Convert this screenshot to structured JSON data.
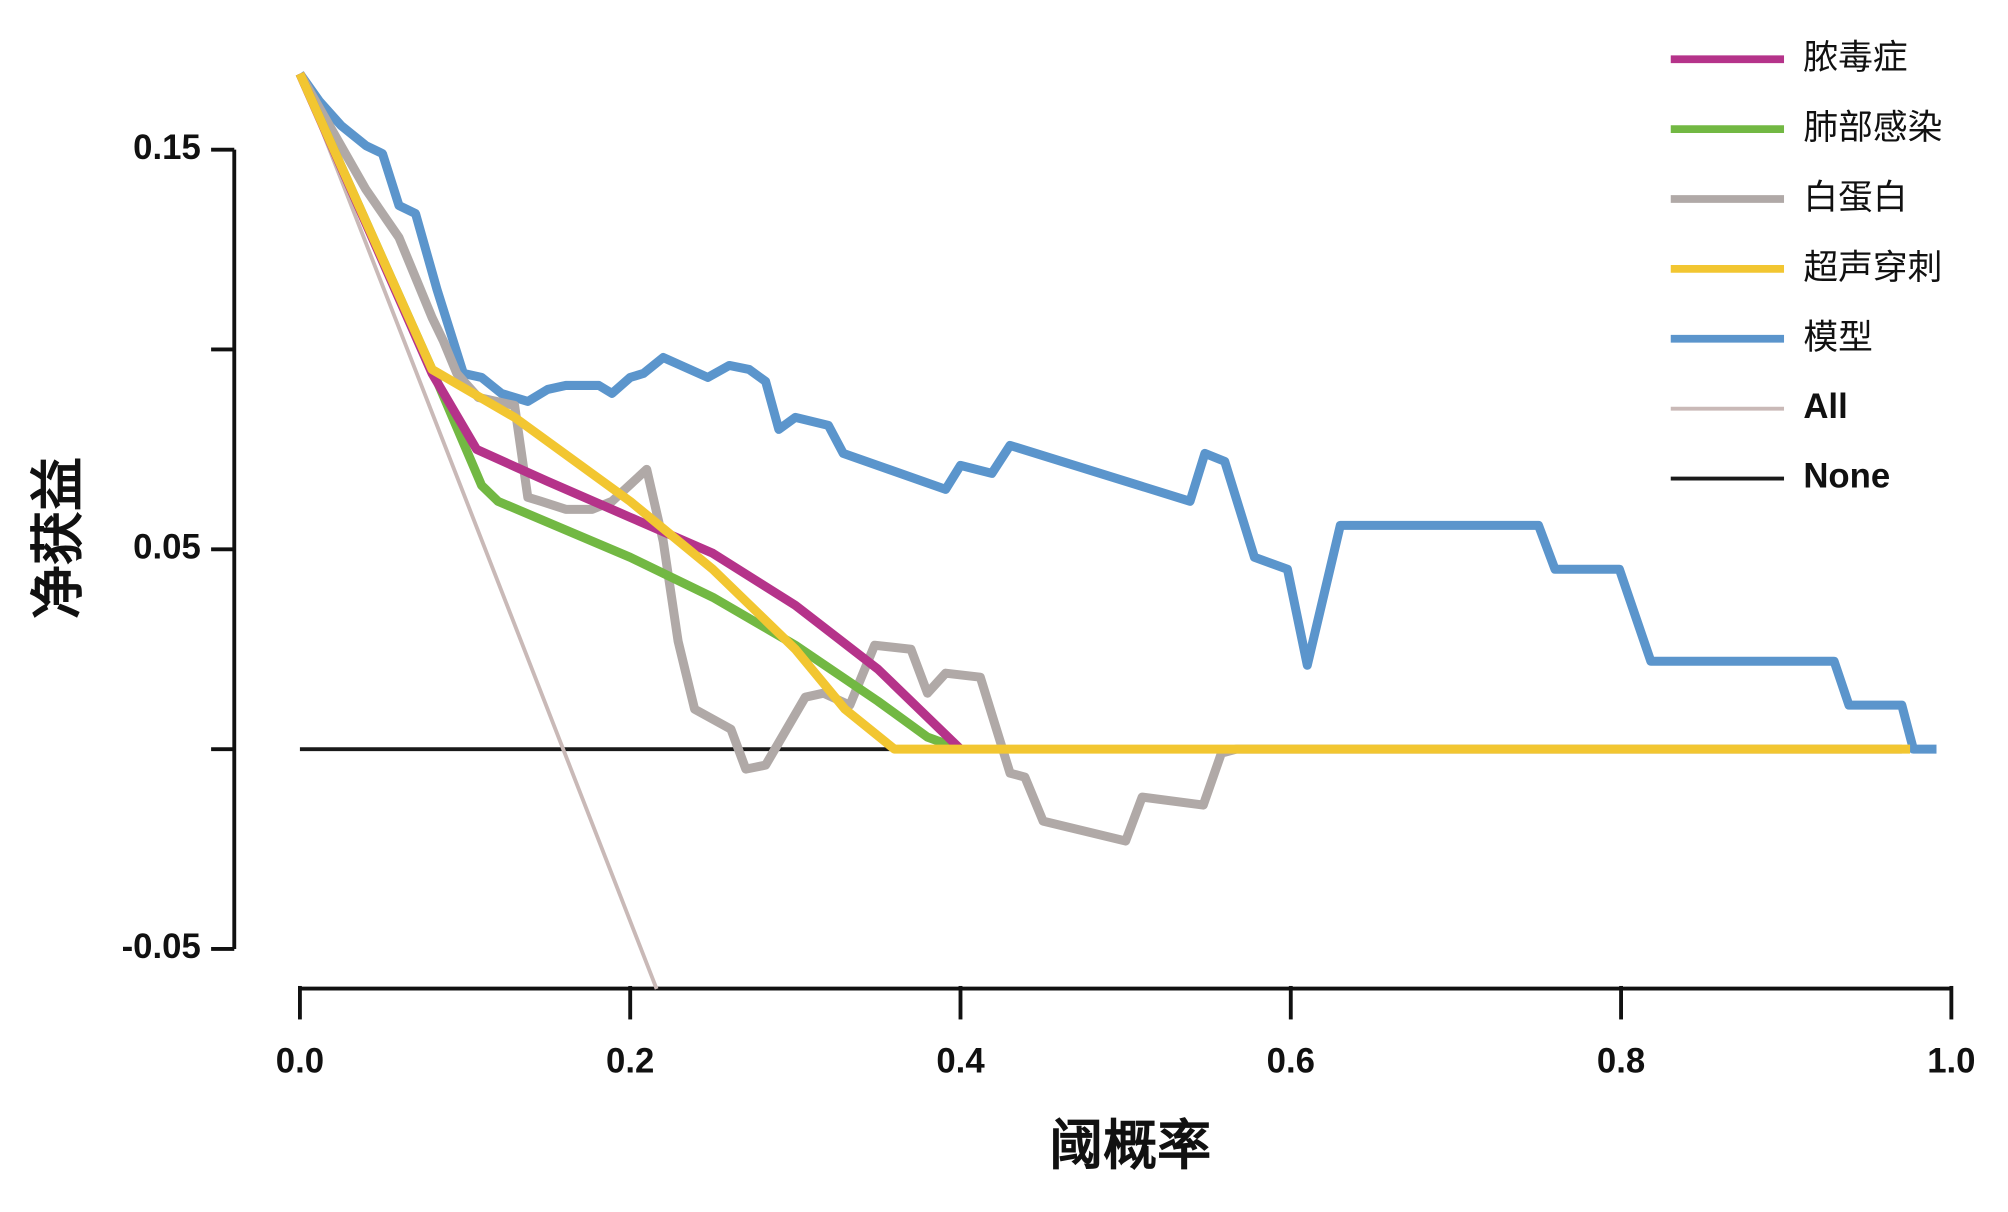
{
  "chart_data": {
    "type": "line",
    "xlabel": "阈概率",
    "ylabel": "净获益",
    "xlim": [
      0,
      1
    ],
    "ylim": [
      -0.06,
      0.17
    ],
    "xticks": [
      {
        "value": 0,
        "label": "0.0"
      },
      0.2,
      0.4,
      0.6,
      0.8,
      {
        "value": 1,
        "label": "1.0"
      }
    ],
    "yticks": [
      0.15,
      {
        "value": 0.1,
        "label": null
      },
      0.05,
      {
        "value": 0,
        "label": null
      },
      -0.05
    ],
    "legend": "top-right",
    "series": [
      {
        "name": "脓毒症",
        "color": "#b5338a",
        "x": [
          0,
          0.08,
          0.107,
          0.15,
          0.2,
          0.25,
          0.3,
          0.35,
          0.4
        ],
        "values": [
          0.169,
          0.094,
          0.075,
          0.067,
          0.058,
          0.049,
          0.036,
          0.02,
          0
        ]
      },
      {
        "name": "肺部感染",
        "color": "#72b843",
        "x": [
          0,
          0.08,
          0.11,
          0.12,
          0.2,
          0.25,
          0.3,
          0.35,
          0.38,
          0.4
        ],
        "values": [
          0.169,
          0.095,
          0.066,
          0.062,
          0.048,
          0.038,
          0.026,
          0.012,
          0.003,
          0
        ]
      },
      {
        "name": "白蛋白",
        "color": "#b0a9a7",
        "x": [
          0,
          0.04,
          0.06,
          0.07,
          0.08,
          0.087,
          0.095,
          0.108,
          0.13,
          0.138,
          0.146,
          0.161,
          0.177,
          0.189,
          0.21,
          0.22,
          0.229,
          0.239,
          0.261,
          0.27,
          0.282,
          0.306,
          0.317,
          0.333,
          0.348,
          0.37,
          0.38,
          0.391,
          0.412,
          0.43,
          0.439,
          0.45,
          0.5,
          0.51,
          0.547,
          0.558,
          0.567,
          0.97
        ],
        "values": [
          0.169,
          0.14,
          0.128,
          0.118,
          0.108,
          0.102,
          0.094,
          0.088,
          0.086,
          0.063,
          0.062,
          0.06,
          0.06,
          0.062,
          0.07,
          0.052,
          0.027,
          0.01,
          0.005,
          -0.005,
          -0.004,
          0.013,
          0.014,
          0.011,
          0.026,
          0.025,
          0.014,
          0.019,
          0.018,
          -0.006,
          -0.007,
          -0.018,
          -0.023,
          -0.012,
          -0.014,
          -0.001,
          0,
          0
        ]
      },
      {
        "name": "超声穿刺",
        "color": "#f2c631",
        "x": [
          0,
          0.08,
          0.13,
          0.2,
          0.25,
          0.3,
          0.33,
          0.36,
          0.975
        ],
        "values": [
          0.169,
          0.095,
          0.083,
          0.062,
          0.045,
          0.025,
          0.01,
          0,
          0
        ]
      },
      {
        "name": "模型",
        "color": "#5b95cc",
        "x": [
          0,
          0.012,
          0.025,
          0.04,
          0.05,
          0.06,
          0.07,
          0.083,
          0.099,
          0.11,
          0.122,
          0.138,
          0.15,
          0.161,
          0.181,
          0.189,
          0.2,
          0.208,
          0.22,
          0.247,
          0.26,
          0.272,
          0.282,
          0.29,
          0.3,
          0.32,
          0.329,
          0.391,
          0.4,
          0.419,
          0.43,
          0.539,
          0.548,
          0.56,
          0.578,
          0.598,
          0.61,
          0.63,
          0.75,
          0.76,
          0.799,
          0.818,
          0.929,
          0.938,
          0.97,
          0.977,
          0.991
        ],
        "values": [
          0.169,
          0.162,
          0.156,
          0.151,
          0.149,
          0.136,
          0.134,
          0.115,
          0.094,
          0.093,
          0.089,
          0.087,
          0.09,
          0.091,
          0.091,
          0.089,
          0.093,
          0.094,
          0.098,
          0.093,
          0.096,
          0.095,
          0.092,
          0.08,
          0.083,
          0.081,
          0.074,
          0.065,
          0.071,
          0.069,
          0.076,
          0.062,
          0.074,
          0.072,
          0.048,
          0.045,
          0.021,
          0.056,
          0.056,
          0.045,
          0.045,
          0.022,
          0.022,
          0.011,
          0.011,
          0,
          0
        ]
      },
      {
        "name": "All",
        "color": "#c9b9b7",
        "x": [
          0,
          0.216
        ],
        "values": [
          0.169,
          -0.06
        ]
      },
      {
        "name": "None",
        "color": "#1a1a1a",
        "x": [
          0,
          0.99
        ],
        "values": [
          0,
          0
        ]
      }
    ]
  }
}
